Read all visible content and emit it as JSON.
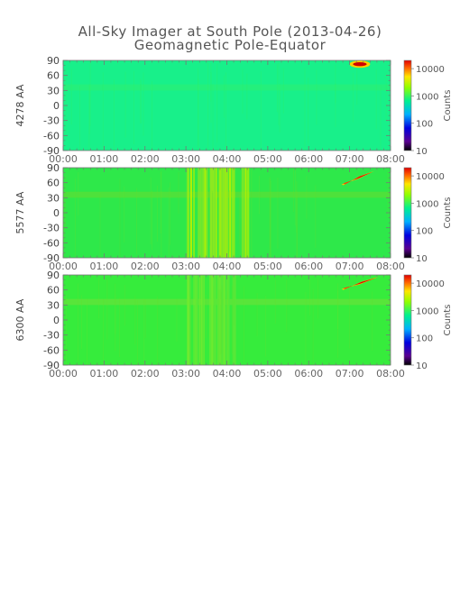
{
  "header": {
    "title": "All-Sky Imager at South Pole (2013-04-26)",
    "subtitle": "Geomagnetic Pole-Equator"
  },
  "chart_data": [
    {
      "type": "heatmap",
      "ylabel": "4278 AA",
      "x_ticks": [
        "00:00",
        "01:00",
        "02:00",
        "03:00",
        "04:00",
        "05:00",
        "06:00",
        "07:00",
        "08:00"
      ],
      "y_ticks": [
        "90",
        "60",
        "30",
        "0",
        "-30",
        "-60",
        "-90"
      ],
      "xlim": [
        0,
        8
      ],
      "ylim": [
        -90,
        90
      ],
      "colorbar": {
        "label": "Counts",
        "ticks": [
          "10000",
          "1000",
          "100",
          "10"
        ],
        "scale": "log",
        "range": [
          10,
          20000
        ]
      },
      "background_level": "low-mid (cyan-green)",
      "bright_features": [
        {
          "time_start": 7.0,
          "time_end": 7.5,
          "lat_start": 80,
          "lat_end": 85,
          "level": "high (red)"
        }
      ]
    },
    {
      "type": "heatmap",
      "ylabel": "5577 AA",
      "x_ticks": [
        "00:00",
        "01:00",
        "02:00",
        "03:00",
        "04:00",
        "05:00",
        "06:00",
        "07:00",
        "08:00"
      ],
      "y_ticks": [
        "90",
        "60",
        "30",
        "0",
        "-30",
        "-60",
        "-90"
      ],
      "xlim": [
        0,
        8
      ],
      "ylim": [
        -90,
        90
      ],
      "colorbar": {
        "label": "Counts",
        "ticks": [
          "10000",
          "1000",
          "100",
          "10"
        ],
        "scale": "log",
        "range": [
          10,
          20000
        ]
      },
      "background_level": "mid (green)",
      "bright_features": [
        {
          "time_start": 3.0,
          "time_end": 4.5,
          "lat_start": -90,
          "lat_end": 90,
          "level": "mid-high (yellow-green)"
        },
        {
          "time_start": 6.8,
          "time_end": 7.6,
          "lat_start": 55,
          "lat_end": 85,
          "level": "high (red)"
        }
      ]
    },
    {
      "type": "heatmap",
      "ylabel": "6300 AA",
      "x_ticks": [
        "00:00",
        "01:00",
        "02:00",
        "03:00",
        "04:00",
        "05:00",
        "06:00",
        "07:00",
        "08:00"
      ],
      "y_ticks": [
        "90",
        "60",
        "30",
        "0",
        "-30",
        "-60",
        "-90"
      ],
      "xlim": [
        0,
        8
      ],
      "ylim": [
        -90,
        90
      ],
      "colorbar": {
        "label": "Counts",
        "ticks": [
          "10000",
          "1000",
          "100",
          "10"
        ],
        "scale": "log",
        "range": [
          10,
          20000
        ]
      },
      "background_level": "mid (green)",
      "bright_features": [
        {
          "time_start": 3.0,
          "time_end": 4.2,
          "lat_start": -90,
          "lat_end": 90,
          "level": "mid (green)"
        },
        {
          "time_start": 6.8,
          "time_end": 7.7,
          "lat_start": 60,
          "lat_end": 88,
          "level": "high (red)"
        }
      ]
    }
  ]
}
